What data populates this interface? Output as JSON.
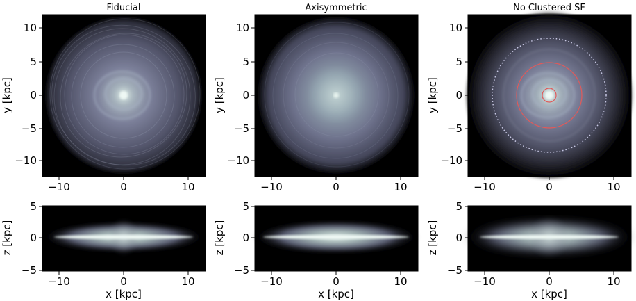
{
  "panels": [
    {
      "title": "Fiducial"
    },
    {
      "title": "Axisymmetric"
    },
    {
      "title": "No Clustered SF"
    }
  ],
  "faceon": {
    "x_ticks": [
      "−10",
      "0",
      "10"
    ],
    "y_ticks": [
      "10",
      "5",
      "0",
      "−5",
      "−10"
    ],
    "ylabel": "y [kpc]"
  },
  "edgeon": {
    "x_ticks": [
      "−10",
      "0",
      "10"
    ],
    "z_ticks": [
      "5",
      "0",
      "−5"
    ],
    "ylabel": "z [kpc]",
    "xlabel": "x [kpc]"
  },
  "colors": {
    "background": "#000000",
    "disk_core": "#dfeee8",
    "disk_mid": "#7a7f9a",
    "disk_outer": "#3c3d52",
    "circle_red": "#e05a5a",
    "circle_dotted": "#c9c9e6"
  }
}
